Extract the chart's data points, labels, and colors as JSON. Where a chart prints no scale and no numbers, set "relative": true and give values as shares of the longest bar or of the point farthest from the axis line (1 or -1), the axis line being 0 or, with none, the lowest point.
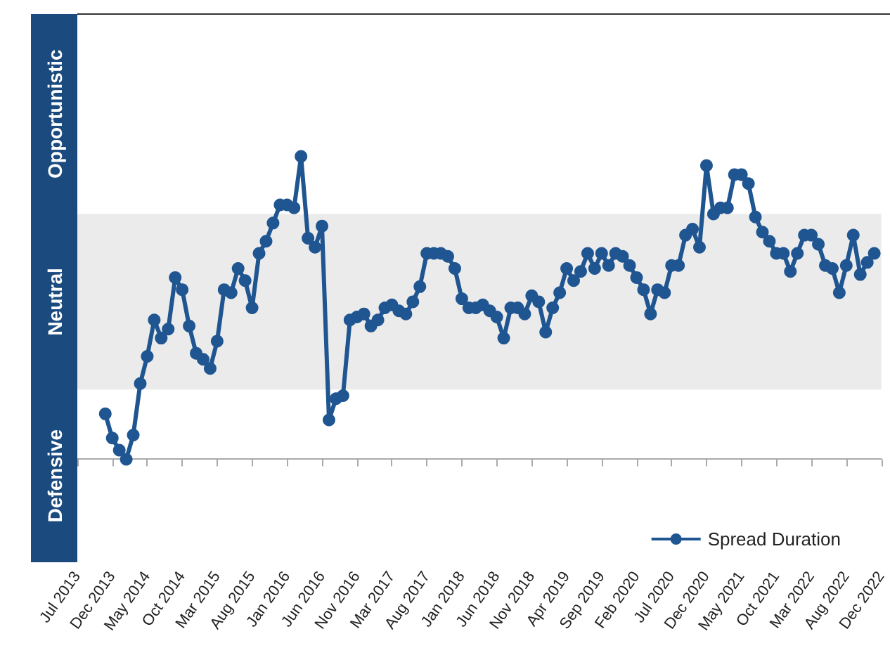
{
  "chart_data": {
    "type": "line",
    "relative": true,
    "categories": [
      "Jul 2013",
      null,
      null,
      null,
      null,
      "Dec 2013",
      null,
      null,
      null,
      null,
      "May 2014",
      null,
      null,
      null,
      null,
      "Oct 2014",
      null,
      null,
      null,
      null,
      "Mar 2015",
      null,
      null,
      null,
      null,
      "Aug 2015",
      null,
      null,
      null,
      null,
      "Jan 2016",
      null,
      null,
      null,
      null,
      "Jun 2016",
      null,
      null,
      null,
      null,
      "Nov 2016",
      null,
      null,
      null,
      null,
      "Mar 2017",
      null,
      null,
      null,
      null,
      "Aug 2017",
      null,
      null,
      null,
      null,
      "Jan 2018",
      null,
      null,
      null,
      null,
      "Jun 2018",
      null,
      null,
      null,
      null,
      "Nov 2018",
      null,
      null,
      null,
      null,
      "Apr 2019",
      null,
      null,
      null,
      null,
      "Sep 2019",
      null,
      null,
      null,
      null,
      "Feb 2020",
      null,
      null,
      null,
      null,
      "Jul 2020",
      null,
      null,
      null,
      null,
      "Dec 2020",
      null,
      null,
      null,
      null,
      "May 2021",
      null,
      null,
      null,
      null,
      "Oct 2021",
      null,
      null,
      null,
      null,
      "Mar 2022",
      null,
      null,
      null,
      null,
      "Aug 2022",
      null,
      null,
      null,
      null,
      "Dec 2022"
    ],
    "series": [
      {
        "name": "Spread Duration",
        "color": "#1f5591",
        "values": [
          null,
          null,
          null,
          null,
          0.15,
          0.07,
          0.03,
          0,
          0.08,
          0.25,
          0.34,
          0.46,
          0.4,
          0.43,
          0.6,
          0.56,
          0.44,
          0.35,
          0.33,
          0.3,
          0.39,
          0.56,
          0.55,
          0.63,
          0.59,
          0.5,
          0.68,
          0.72,
          0.78,
          0.84,
          0.84,
          0.83,
          1,
          0.73,
          0.7,
          0.77,
          0.13,
          0.2,
          0.21,
          0.46,
          0.47,
          0.48,
          0.44,
          0.46,
          0.5,
          0.51,
          0.49,
          0.48,
          0.52,
          0.57,
          0.68,
          0.68,
          0.68,
          0.67,
          0.63,
          0.53,
          0.5,
          0.5,
          0.51,
          0.49,
          0.47,
          0.4,
          0.5,
          0.5,
          0.48,
          0.54,
          0.52,
          0.42,
          0.5,
          0.55,
          0.63,
          0.59,
          0.62,
          0.68,
          0.63,
          0.68,
          0.64,
          0.68,
          0.67,
          0.64,
          0.6,
          0.56,
          0.48,
          0.56,
          0.55,
          0.64,
          0.64,
          0.74,
          0.76,
          0.7,
          0.97,
          0.81,
          0.83,
          0.83,
          0.94,
          0.94,
          0.91,
          0.8,
          0.75,
          0.72,
          0.68,
          0.68,
          0.62,
          0.68,
          0.74,
          0.74,
          0.71,
          0.64,
          0.63,
          0.55,
          0.64,
          0.74,
          0.61,
          0.65,
          0.68,
          null
        ]
      }
    ],
    "bands": [
      {
        "axis": "y",
        "from": 0.23,
        "to": 0.81,
        "color": "#ebebeb"
      }
    ],
    "annotations": [
      "Opportunistic",
      "Neutral",
      "Defensive"
    ],
    "marker": "circle",
    "line_style": "solid",
    "legend": "bottom right",
    "grid": false
  }
}
